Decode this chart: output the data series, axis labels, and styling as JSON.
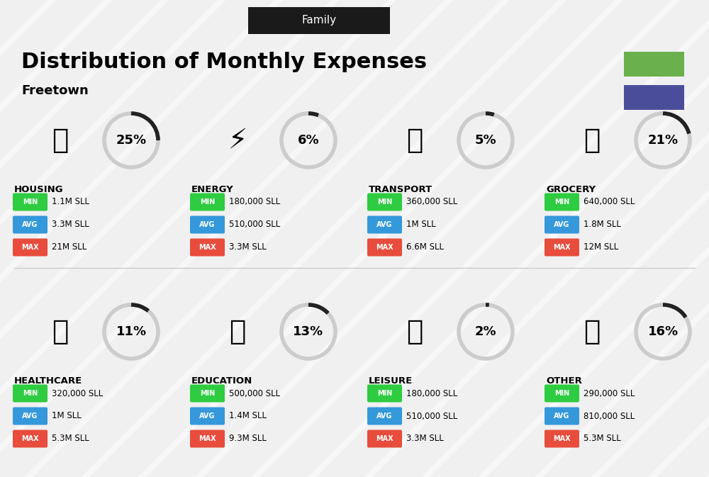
{
  "title": "Distribution of Monthly Expenses",
  "subtitle": "Freetown",
  "header_label": "Family",
  "background_color": "#f0f0f0",
  "header_bg": "#1a1a1a",
  "header_text_color": "#ffffff",
  "green_color": "#6ab04c",
  "blue_color": "#4a4e9a",
  "categories": [
    {
      "name": "HOUSING",
      "percent": 25,
      "min": "1.1M SLL",
      "avg": "3.3M SLL",
      "max": "21M SLL",
      "col": 0,
      "row": 0
    },
    {
      "name": "ENERGY",
      "percent": 6,
      "min": "180,000 SLL",
      "avg": "510,000 SLL",
      "max": "3.3M SLL",
      "col": 1,
      "row": 0
    },
    {
      "name": "TRANSPORT",
      "percent": 5,
      "min": "360,000 SLL",
      "avg": "1M SLL",
      "max": "6.6M SLL",
      "col": 2,
      "row": 0
    },
    {
      "name": "GROCERY",
      "percent": 21,
      "min": "640,000 SLL",
      "avg": "1.8M SLL",
      "max": "12M SLL",
      "col": 3,
      "row": 0
    },
    {
      "name": "HEALTHCARE",
      "percent": 11,
      "min": "320,000 SLL",
      "avg": "1M SLL",
      "max": "5.3M SLL",
      "col": 0,
      "row": 1
    },
    {
      "name": "EDUCATION",
      "percent": 13,
      "min": "500,000 SLL",
      "avg": "1.4M SLL",
      "max": "9.3M SLL",
      "col": 1,
      "row": 1
    },
    {
      "name": "LEISURE",
      "percent": 2,
      "min": "180,000 SLL",
      "avg": "510,000 SLL",
      "max": "3.3M SLL",
      "col": 2,
      "row": 1
    },
    {
      "name": "OTHER",
      "percent": 16,
      "min": "290,000 SLL",
      "avg": "810,000 SLL",
      "max": "5.3M SLL",
      "col": 3,
      "row": 1
    }
  ],
  "min_color": "#2ecc40",
  "avg_color": "#3498db",
  "max_color": "#e74c3c",
  "donut_dark": "#222222",
  "donut_light": "#cccccc",
  "label_colors": {
    "MIN": "#2ecc40",
    "AVG": "#3498db",
    "MAX": "#e74c3c"
  }
}
